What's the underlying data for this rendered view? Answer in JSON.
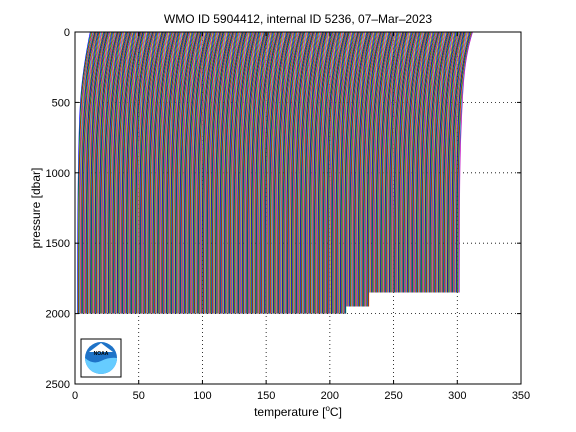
{
  "chart_data": {
    "type": "line",
    "title": "WMO ID 5904412, internal ID 5236, 07–Mar–2023",
    "xlabel": "temperature [",
    "xlabel_unit": "C]",
    "ylabel": "pressure [dbar]",
    "xlim": [
      0,
      350
    ],
    "ylim": [
      0,
      2500
    ],
    "y_reversed": true,
    "xticks": [
      "0",
      "50",
      "100",
      "150",
      "200",
      "250",
      "300",
      "350"
    ],
    "yticks": [
      "0",
      "500",
      "1000",
      "1500",
      "2000",
      "2500"
    ],
    "grid": "dotted",
    "profile_offset_deg_c_per_profile": 0.5,
    "profiles": [
      {
        "offset_range": [
          0,
          211
        ],
        "surface_temp": 12,
        "bottom_temp": 2.0,
        "max_pressure": 2000
      },
      {
        "offset_range": [
          211,
          229
        ],
        "surface_temp": 12,
        "bottom_temp": 2.0,
        "max_pressure": 1950
      },
      {
        "offset_range": [
          229,
          238
        ],
        "surface_temp": 12,
        "bottom_temp": 2.0,
        "max_pressure": 1890
      },
      {
        "offset_range": [
          238,
          300
        ],
        "surface_temp": 12,
        "bottom_temp": 2.0,
        "max_pressure": 1860
      }
    ],
    "series_colors": [
      "#0000ff",
      "#00a000",
      "#ff0000",
      "#00bfbf",
      "#bf00bf",
      "#bfbf00",
      "#404040"
    ],
    "logo": "noaa-logo"
  }
}
